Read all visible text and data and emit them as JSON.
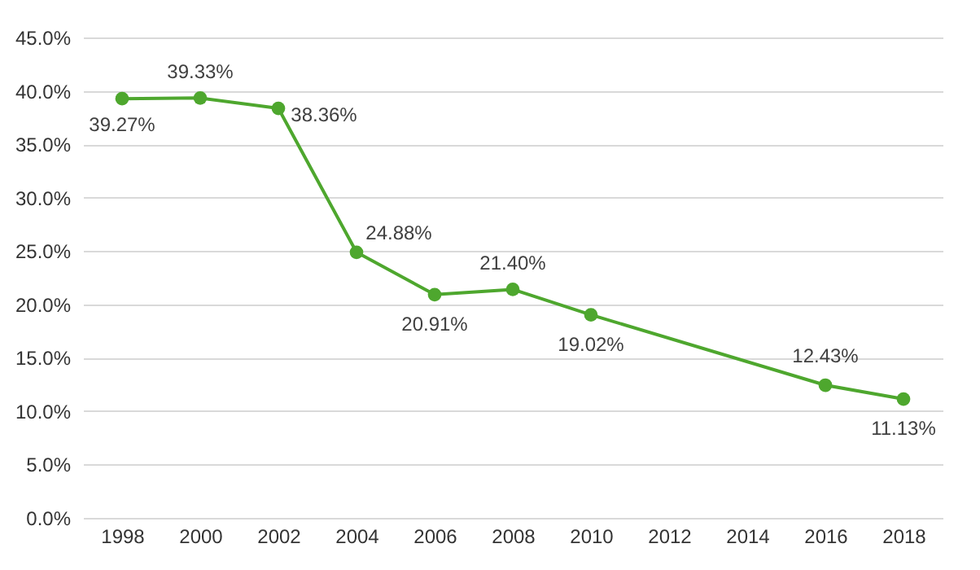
{
  "chart_data": {
    "type": "line",
    "categories": [
      "1998",
      "2000",
      "2002",
      "2004",
      "2006",
      "2008",
      "2010",
      "2012",
      "2014",
      "2016",
      "2018"
    ],
    "series": [
      {
        "color": "#4ea72e",
        "values": [
          39.27,
          39.33,
          38.36,
          24.88,
          20.91,
          21.4,
          19.02,
          null,
          null,
          12.43,
          11.13
        ],
        "value_labels": [
          "39.27%",
          "39.33%",
          "38.36%",
          "24.88%",
          "20.91%",
          "21.40%",
          "19.02%",
          null,
          null,
          "12.43%",
          "11.13%"
        ]
      }
    ],
    "ylim": [
      0,
      45
    ],
    "yticks": [
      {
        "value": 0,
        "label": "0.0%"
      },
      {
        "value": 5,
        "label": "5.0%"
      },
      {
        "value": 10,
        "label": "10.0%"
      },
      {
        "value": 15,
        "label": "15.0%"
      },
      {
        "value": 20,
        "label": "20.0%"
      },
      {
        "value": 25,
        "label": "25.0%"
      },
      {
        "value": 30,
        "label": "30.0%"
      },
      {
        "value": 35,
        "label": "35.0%"
      },
      {
        "value": 40,
        "label": "40.0%"
      },
      {
        "value": 45,
        "label": "45.0%"
      }
    ],
    "grid": "y",
    "marker": "circle",
    "line_style": "solid"
  }
}
